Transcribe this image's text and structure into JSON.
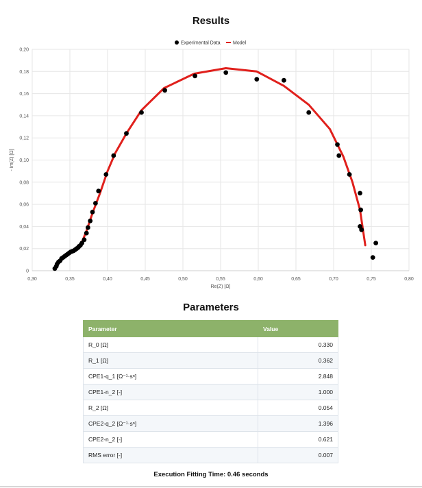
{
  "page": {
    "results_title": "Results",
    "parameters_title": "Parameters",
    "execution_text": "Execution Fitting Time: 0.46 seconds"
  },
  "chart_data": {
    "type": "scatter",
    "xlabel": "Re(Z) [Ω]",
    "ylabel": "- Im(Z) [Ω]",
    "xlim": [
      0.3,
      0.8
    ],
    "ylim": [
      0,
      0.2
    ],
    "xticks": [
      "0,30",
      "0,35",
      "0,40",
      "0,45",
      "0,50",
      "0,55",
      "0,60",
      "0,65",
      "0,70",
      "0,75",
      "0,80"
    ],
    "yticks": [
      "0",
      "0,02",
      "0,04",
      "0,06",
      "0,08",
      "0,10",
      "0,12",
      "0,14",
      "0,16",
      "0,18",
      "0,20"
    ],
    "grid": true,
    "legend_position": "top-center",
    "series": [
      {
        "name": "Experimental Data",
        "kind": "scatter",
        "color": "#000000",
        "x": [
          0.33,
          0.332,
          0.333,
          0.335,
          0.337,
          0.339,
          0.341,
          0.343,
          0.345,
          0.347,
          0.349,
          0.351,
          0.353,
          0.355,
          0.357,
          0.359,
          0.361,
          0.362,
          0.364,
          0.366,
          0.369,
          0.372,
          0.374,
          0.377,
          0.38,
          0.384,
          0.388,
          0.398,
          0.408,
          0.425,
          0.445,
          0.476,
          0.516,
          0.557,
          0.598,
          0.634,
          0.667,
          0.705,
          0.707,
          0.721,
          0.735,
          0.736,
          0.735,
          0.737,
          0.752,
          0.756
        ],
        "y": [
          0.002,
          0.004,
          0.006,
          0.008,
          0.009,
          0.011,
          0.012,
          0.013,
          0.014,
          0.015,
          0.016,
          0.017,
          0.0175,
          0.018,
          0.019,
          0.02,
          0.021,
          0.022,
          0.023,
          0.025,
          0.028,
          0.034,
          0.039,
          0.045,
          0.053,
          0.061,
          0.072,
          0.087,
          0.104,
          0.124,
          0.143,
          0.163,
          0.176,
          0.179,
          0.173,
          0.172,
          0.143,
          0.114,
          0.104,
          0.087,
          0.07,
          0.055,
          0.04,
          0.037,
          0.012,
          0.025
        ]
      },
      {
        "name": "Model",
        "kind": "line",
        "color": "#e0201c",
        "x": [
          0.365,
          0.372,
          0.38,
          0.39,
          0.4,
          0.41,
          0.425,
          0.445,
          0.475,
          0.515,
          0.557,
          0.598,
          0.634,
          0.667,
          0.695,
          0.713,
          0.725,
          0.735,
          0.742
        ],
        "y": [
          0.024,
          0.036,
          0.052,
          0.07,
          0.09,
          0.106,
          0.124,
          0.145,
          0.165,
          0.178,
          0.183,
          0.18,
          0.167,
          0.15,
          0.128,
          0.103,
          0.08,
          0.055,
          0.023
        ]
      }
    ]
  },
  "parameters": {
    "header": {
      "parameter": "Parameter",
      "value": "Value"
    },
    "rows": [
      {
        "name": "R_0 [Ω]",
        "value": "0.330"
      },
      {
        "name": "R_1 [Ω]",
        "value": "0.362"
      },
      {
        "name": "CPE1-q_1 [Ω⁻¹·sⁿ]",
        "value": "2.848"
      },
      {
        "name": "CPE1-n_2 [-]",
        "value": "1.000"
      },
      {
        "name": "R_2 [Ω]",
        "value": "0.054"
      },
      {
        "name": "CPE2-q_2 [Ω⁻¹·sⁿ]",
        "value": "1.396"
      },
      {
        "name": "CPE2-n_2 [-]",
        "value": "0.621"
      },
      {
        "name": "RMS error [-]",
        "value": "0.007"
      }
    ]
  }
}
